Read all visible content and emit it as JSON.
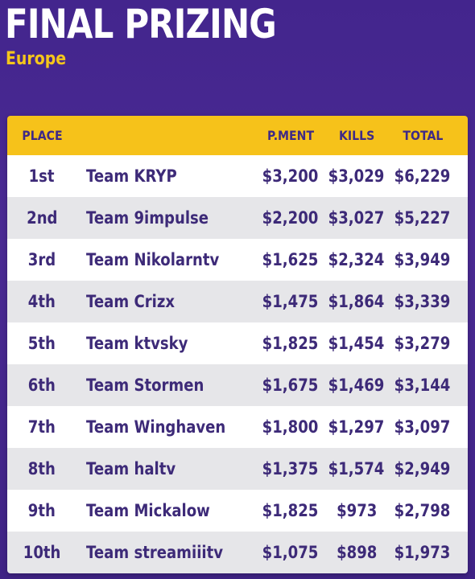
{
  "title": "FINAL PRIZING",
  "subtitle": "Europe",
  "table": {
    "headers": {
      "place": "PLACE",
      "team": "",
      "placement": "P.MENT",
      "kills": "KILLS",
      "total": "TOTAL"
    },
    "rows": [
      {
        "place": "1st",
        "team": "Team KRYP",
        "placement": "$3,200",
        "kills": "$3,029",
        "total": "$6,229"
      },
      {
        "place": "2nd",
        "team": "Team 9impulse",
        "placement": "$2,200",
        "kills": "$3,027",
        "total": "$5,227"
      },
      {
        "place": "3rd",
        "team": "Team Nikolarntv",
        "placement": "$1,625",
        "kills": "$2,324",
        "total": "$3,949"
      },
      {
        "place": "4th",
        "team": "Team Crizx",
        "placement": "$1,475",
        "kills": "$1,864",
        "total": "$3,339"
      },
      {
        "place": "5th",
        "team": "Team ktvsky",
        "placement": "$1,825",
        "kills": "$1,454",
        "total": "$3,279"
      },
      {
        "place": "6th",
        "team": "Team Stormen",
        "placement": "$1,675",
        "kills": "$1,469",
        "total": "$3,144"
      },
      {
        "place": "7th",
        "team": "Team Winghaven",
        "placement": "$1,800",
        "kills": "$1,297",
        "total": "$3,097"
      },
      {
        "place": "8th",
        "team": "Team haltv",
        "placement": "$1,375",
        "kills": "$1,574",
        "total": "$2,949"
      },
      {
        "place": "9th",
        "team": "Team Mickalow",
        "placement": "$1,825",
        "kills": "$973",
        "total": "$2,798"
      },
      {
        "place": "10th",
        "team": "Team streamiiitv",
        "placement": "$1,075",
        "kills": "$898",
        "total": "$1,973"
      }
    ]
  },
  "colors": {
    "background": "#43258d",
    "accent_yellow": "#f6c21a",
    "subtitle_yellow": "#f5c61b",
    "text_purple": "#3d2a78",
    "row_white": "#ffffff",
    "row_grey": "#e6e6e9"
  }
}
